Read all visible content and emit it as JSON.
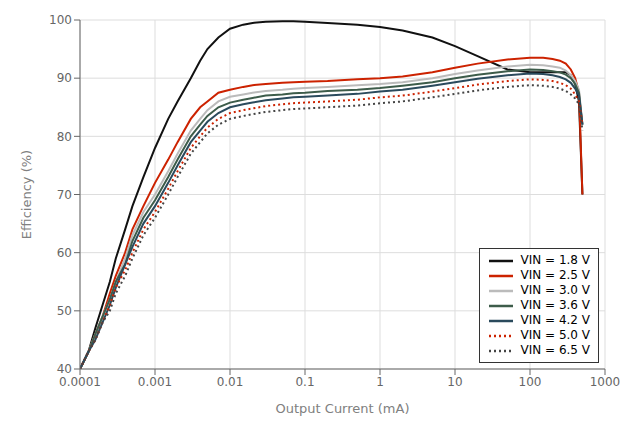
{
  "chart_data": {
    "type": "line",
    "xlabel": "Output Current (mA)",
    "ylabel": "Efficiency (%)",
    "log": "x",
    "xlim": [
      0.0001,
      1000
    ],
    "xticks": [
      0.0001,
      0.001,
      0.01,
      0.1,
      1,
      10,
      100,
      1000
    ],
    "ylim": [
      40,
      100
    ],
    "yticks": [
      40,
      50,
      60,
      70,
      80,
      90,
      100
    ],
    "grid": true,
    "legend": "lower right",
    "x": [
      0.0001,
      0.00013,
      0.00016,
      0.0002,
      0.00025,
      0.0003,
      0.0004,
      0.0005,
      0.0007,
      0.001,
      0.0015,
      0.002,
      0.003,
      0.004,
      0.005,
      0.007,
      0.01,
      0.015,
      0.02,
      0.03,
      0.05,
      0.07,
      0.1,
      0.2,
      0.5,
      1,
      2,
      5,
      10,
      20,
      50,
      100,
      150,
      200,
      250,
      300,
      350,
      400,
      450,
      500
    ],
    "series": [
      {
        "name": "VIN = 1.8 V",
        "color": "#111111",
        "line_style": "solid",
        "values": [
          40,
          43,
          47,
          51,
          55,
          59,
          64,
          68,
          73,
          78,
          83,
          86,
          90,
          93,
          95,
          97,
          98.5,
          99.2,
          99.5,
          99.7,
          99.8,
          99.8,
          99.7,
          99.5,
          99.2,
          98.8,
          98.2,
          97.0,
          95.5,
          93.8,
          91.5,
          91.0,
          91.0,
          91.0,
          91.0,
          91.0,
          90.5,
          89.0,
          86.0,
          70.0
        ]
      },
      {
        "name": "VIN = 2.5 V",
        "color": "#cc2200",
        "line_style": "solid",
        "values": [
          40,
          43,
          46,
          49,
          53,
          56,
          60,
          64,
          68,
          72,
          76,
          79,
          83,
          85,
          86,
          87.5,
          88,
          88.5,
          88.8,
          89.0,
          89.2,
          89.3,
          89.4,
          89.5,
          89.8,
          90.0,
          90.3,
          91.0,
          91.8,
          92.5,
          93.2,
          93.5,
          93.5,
          93.3,
          93.0,
          92.5,
          91.5,
          90.0,
          87.5,
          70.0
        ]
      },
      {
        "name": "VIN = 3.0 V",
        "color": "#bbbbbb",
        "line_style": "solid",
        "values": [
          40,
          43,
          46,
          49,
          52,
          55,
          59,
          63,
          67,
          70,
          74,
          77,
          81,
          83,
          84.5,
          86,
          86.8,
          87.2,
          87.5,
          87.8,
          88.0,
          88.2,
          88.3,
          88.5,
          88.8,
          89.0,
          89.3,
          90.0,
          90.7,
          91.3,
          92.0,
          92.3,
          92.2,
          92.0,
          91.8,
          91.3,
          90.5,
          89.5,
          88.0,
          82.0
        ]
      },
      {
        "name": "VIN = 3.6 V",
        "color": "#3d5c4a",
        "line_style": "solid",
        "values": [
          40,
          43,
          46,
          49,
          52,
          55,
          58,
          62,
          66,
          69,
          73,
          76,
          80,
          82,
          83.5,
          85,
          85.8,
          86.3,
          86.6,
          87.0,
          87.2,
          87.4,
          87.5,
          87.8,
          88.0,
          88.3,
          88.7,
          89.3,
          90.0,
          90.6,
          91.2,
          91.5,
          91.4,
          91.2,
          91.0,
          90.6,
          90.0,
          89.0,
          87.5,
          82.0
        ]
      },
      {
        "name": "VIN = 4.2 V",
        "color": "#2a4a5c",
        "line_style": "solid",
        "values": [
          40,
          43,
          45,
          48,
          51,
          54,
          58,
          61,
          65,
          68,
          72,
          75,
          79,
          81,
          82.5,
          84,
          85.0,
          85.5,
          85.8,
          86.2,
          86.5,
          86.7,
          86.8,
          87.0,
          87.3,
          87.7,
          88.0,
          88.7,
          89.3,
          89.9,
          90.5,
          90.8,
          90.7,
          90.5,
          90.2,
          89.8,
          89.2,
          88.2,
          87.0,
          82.0
        ]
      },
      {
        "name": "VIN = 5.0 V",
        "color": "#cc2200",
        "line_style": "dotted",
        "values": [
          40,
          43,
          45,
          48,
          51,
          54,
          57,
          60,
          64,
          67,
          71,
          74,
          78,
          80,
          81.5,
          83,
          84.0,
          84.5,
          84.8,
          85.2,
          85.5,
          85.7,
          85.8,
          86.0,
          86.3,
          86.7,
          87.0,
          87.7,
          88.3,
          88.9,
          89.5,
          89.8,
          89.7,
          89.5,
          89.2,
          88.8,
          88.2,
          87.2,
          86.0,
          82.0
        ]
      },
      {
        "name": "VIN = 6.5 V",
        "color": "#444444",
        "line_style": "dotted",
        "values": [
          40,
          43,
          45,
          48,
          50,
          53,
          56,
          59,
          63,
          66,
          70,
          73,
          77,
          79,
          80.5,
          82,
          83.0,
          83.5,
          83.8,
          84.2,
          84.5,
          84.7,
          84.8,
          85.0,
          85.3,
          85.7,
          86.0,
          86.7,
          87.3,
          87.9,
          88.5,
          88.8,
          88.7,
          88.5,
          88.2,
          87.8,
          87.2,
          86.5,
          85.5,
          81.0
        ]
      }
    ]
  }
}
